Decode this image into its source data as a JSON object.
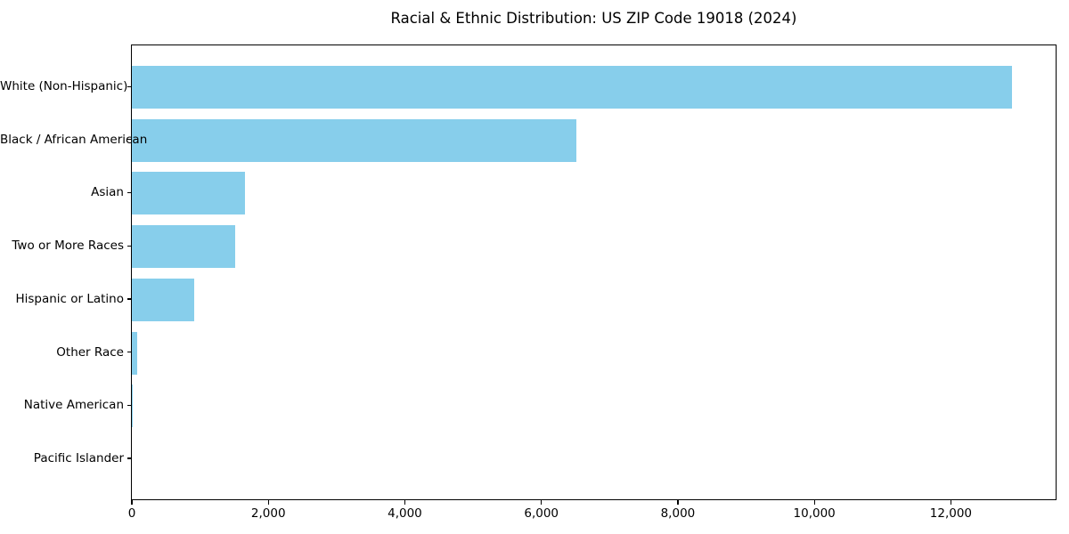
{
  "chart_data": {
    "type": "bar",
    "orientation": "horizontal",
    "title": "Racial & Ethnic Distribution: US ZIP Code 19018 (2024)",
    "categories": [
      "White (Non-Hispanic)",
      "Black / African American",
      "Asian",
      "Two or More Races",
      "Hispanic or Latino",
      "Other Race",
      "Native American",
      "Pacific Islander"
    ],
    "values": [
      12890,
      6515,
      1660,
      1520,
      910,
      75,
      15,
      0
    ],
    "xlabel": "",
    "ylabel": "",
    "xlim": [
      0,
      13535
    ],
    "x_ticks": [
      0,
      2000,
      4000,
      6000,
      8000,
      10000,
      12000
    ],
    "x_tick_labels": [
      "0",
      "2,000",
      "4,000",
      "6,000",
      "8,000",
      "10,000",
      "12,000"
    ],
    "bar_color": "#87CEEB",
    "axis_color": "#000000",
    "text_color": "#000000",
    "grid": false,
    "legend_position": "none"
  }
}
